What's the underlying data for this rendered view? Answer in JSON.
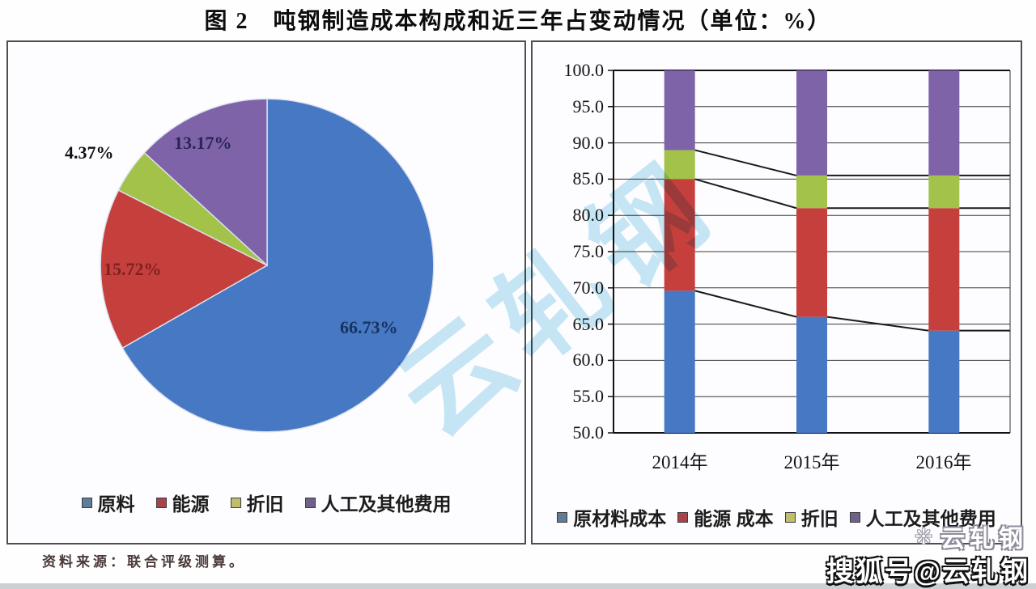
{
  "title": "图 2　吨钢制造成本构成和近三年占变动情况（单位：%）",
  "source": "资料来源：联合评级测算。",
  "watermark": {
    "center": "云轧钢",
    "brand": "云轧钢",
    "sohu": "搜狐号@云轧钢"
  },
  "chart_data": [
    {
      "type": "pie",
      "labels": [
        "原料",
        "能源",
        "折旧",
        "人工及其他费用"
      ],
      "values": [
        66.73,
        15.72,
        4.37,
        13.17
      ],
      "value_labels": [
        "66.73%",
        "15.72%",
        "4.37%",
        "13.17%"
      ],
      "colors": [
        "#4678c4",
        "#c5403c",
        "#a2c24a",
        "#7e63a8"
      ],
      "legend_colors": [
        "#5f7d98",
        "#a8434a",
        "#c2bd6d",
        "#6f6189"
      ],
      "start_angle_deg": 0,
      "direction": "clockwise",
      "legend_position": "bottom"
    },
    {
      "type": "bar",
      "subtype": "stacked",
      "categories": [
        "2014年",
        "2015年",
        "2016年"
      ],
      "series": [
        {
          "name": "原材料成本",
          "color": "#4678c4",
          "values": [
            69.6,
            66.0,
            64.1
          ]
        },
        {
          "name": "能源 成本",
          "color": "#c5403c",
          "values": [
            15.4,
            15.0,
            16.9
          ]
        },
        {
          "name": "折旧",
          "color": "#a2c24a",
          "values": [
            4.0,
            4.5,
            4.5
          ]
        },
        {
          "name": "人工及其他费用",
          "color": "#7e63a8",
          "values": [
            11.0,
            14.5,
            14.5
          ]
        }
      ],
      "legend_colors": [
        "#5f7d98",
        "#a8434a",
        "#c2bd6d",
        "#6f6189"
      ],
      "ylim": [
        50,
        100
      ],
      "ytick_step": 5,
      "yticks": [
        "100.0",
        "95.0",
        "90.0",
        "85.0",
        "80.0",
        "75.0",
        "70.0",
        "65.0",
        "60.0",
        "55.0",
        "50.0"
      ],
      "grid": true,
      "series_lines": true,
      "legend_position": "bottom"
    }
  ]
}
